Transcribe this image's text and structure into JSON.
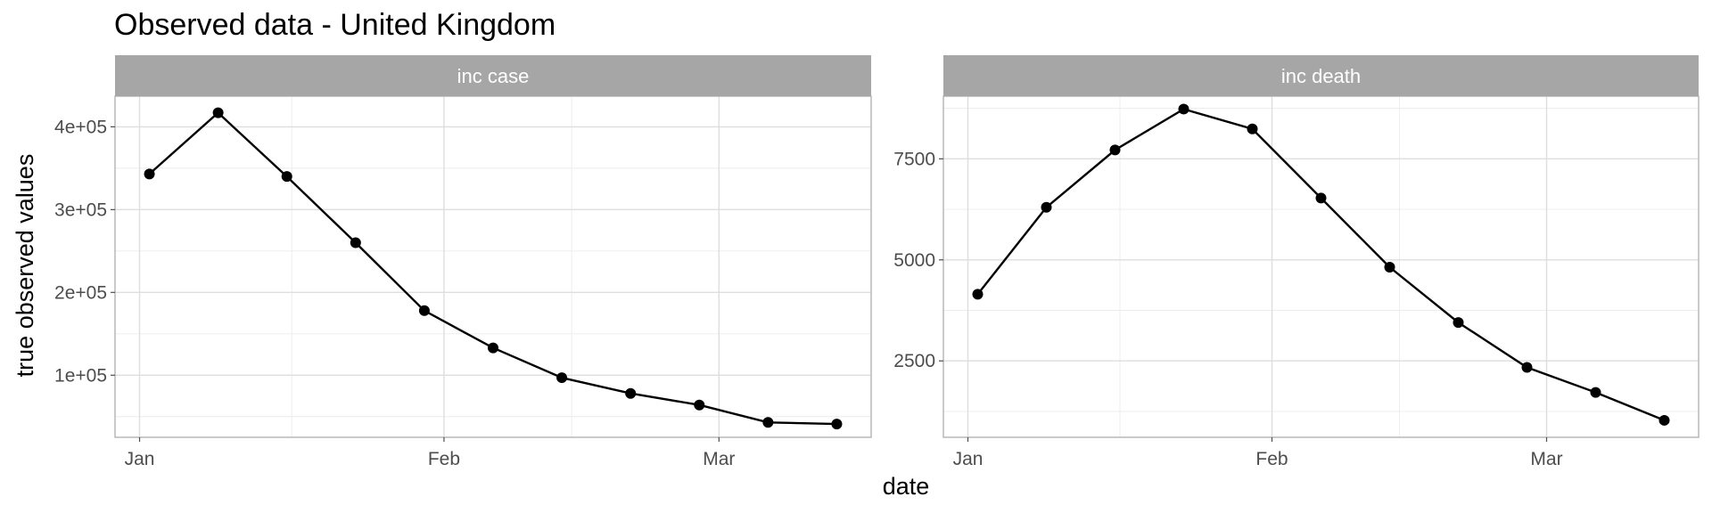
{
  "chart_data": {
    "type": "line",
    "title": "Observed data - United Kingdom",
    "xlabel": "date",
    "ylabel": "true observed values",
    "x_ticks": [
      "Jan",
      "Feb",
      "Mar"
    ],
    "grid": true,
    "x": [
      "2021-01-02",
      "2021-01-09",
      "2021-01-16",
      "2021-01-23",
      "2021-01-30",
      "2021-02-06",
      "2021-02-13",
      "2021-02-20",
      "2021-02-27",
      "2021-03-06",
      "2021-03-13"
    ],
    "panels": [
      {
        "name": "inc case",
        "yticks": [
          "1e+05",
          "2e+05",
          "3e+05",
          "4e+05"
        ],
        "ytick_values": [
          100000,
          200000,
          300000,
          400000
        ],
        "ylim": [
          25000,
          437000
        ],
        "values": [
          343000,
          417000,
          340000,
          260000,
          178000,
          133000,
          97000,
          78000,
          64000,
          43000,
          41000
        ]
      },
      {
        "name": "inc death",
        "yticks": [
          "2500",
          "5000",
          "7500"
        ],
        "ytick_values": [
          2500,
          5000,
          7500
        ],
        "ylim": [
          610,
          9050
        ],
        "values": [
          4150,
          6300,
          7720,
          8730,
          8240,
          6530,
          4820,
          3450,
          2340,
          1720,
          1030
        ]
      }
    ]
  }
}
